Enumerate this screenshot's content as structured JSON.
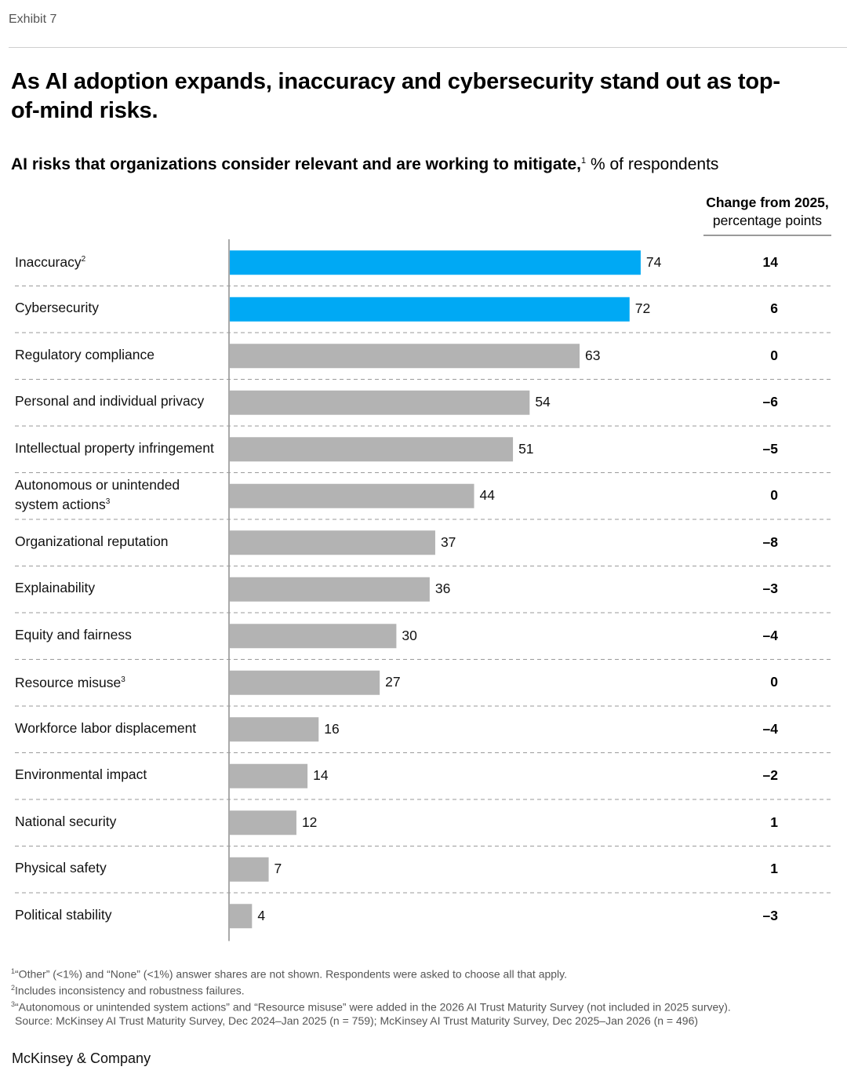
{
  "exhibit": "Exhibit 7",
  "title": "As AI adoption expands, inaccuracy and cybersecurity stand out as top-of-mind risks.",
  "subtitle_bold": "AI risks that organizations consider relevant and are working to mitigate,",
  "subtitle_sup": "1",
  "subtitle_rest": " % of respondents",
  "change_header": {
    "line1": "Change from 2025,",
    "line2": "percentage points"
  },
  "colors": {
    "highlight": "#00a9f4",
    "default": "#b3b3b3"
  },
  "chart_data": {
    "type": "bar",
    "orientation": "horizontal",
    "title": "AI risks that organizations consider relevant and are working to mitigate, % of respondents",
    "xlabel": "% of respondents",
    "ylabel": "",
    "xlim": [
      0,
      100
    ],
    "categories": [
      {
        "label": "Inaccuracy",
        "sup": "2",
        "value": 74,
        "change": "14",
        "highlight": true
      },
      {
        "label": "Cybersecurity",
        "sup": "",
        "value": 72,
        "change": "6",
        "highlight": true
      },
      {
        "label": "Regulatory compliance",
        "sup": "",
        "value": 63,
        "change": "0",
        "highlight": false
      },
      {
        "label": "Personal and individual privacy",
        "sup": "",
        "value": 54,
        "change": "–6",
        "highlight": false
      },
      {
        "label": "Intellectual property infringement",
        "sup": "",
        "value": 51,
        "change": "–5",
        "highlight": false
      },
      {
        "label": "Autonomous or unintended system actions",
        "sup": "3",
        "value": 44,
        "change": "0",
        "highlight": false
      },
      {
        "label": "Organizational reputation",
        "sup": "",
        "value": 37,
        "change": "–8",
        "highlight": false
      },
      {
        "label": "Explainability",
        "sup": "",
        "value": 36,
        "change": "–3",
        "highlight": false
      },
      {
        "label": "Equity and fairness",
        "sup": "",
        "value": 30,
        "change": "–4",
        "highlight": false
      },
      {
        "label": "Resource misuse",
        "sup": "3",
        "value": 27,
        "change": "0",
        "highlight": false
      },
      {
        "label": "Workforce labor displacement",
        "sup": "",
        "value": 16,
        "change": "–4",
        "highlight": false
      },
      {
        "label": "Environmental impact",
        "sup": "",
        "value": 14,
        "change": "–2",
        "highlight": false
      },
      {
        "label": "National security",
        "sup": "",
        "value": 12,
        "change": "1",
        "highlight": false
      },
      {
        "label": "Physical safety",
        "sup": "",
        "value": 7,
        "change": "1",
        "highlight": false
      },
      {
        "label": "Political stability",
        "sup": "",
        "value": 4,
        "change": "–3",
        "highlight": false
      }
    ]
  },
  "footnotes": {
    "n1_sup": "1",
    "n1": "“Other” (<1%) and “None” (<1%) answer shares are not shown. Respondents were asked to choose all that apply.",
    "n2_sup": "2",
    "n2": "Includes inconsistency and robustness failures.",
    "n3_sup": "3",
    "n3": "“Autonomous or unintended system actions” and “Resource misuse” were added in the 2026 AI Trust Maturity Survey (not included in 2025 survey).",
    "source": "Source: McKinsey AI Trust Maturity Survey, Dec 2024–Jan 2025 (n = 759); McKinsey AI Trust Maturity Survey, Dec 2025–Jan 2026 (n = 496)"
  },
  "brand": "McKinsey & Company"
}
